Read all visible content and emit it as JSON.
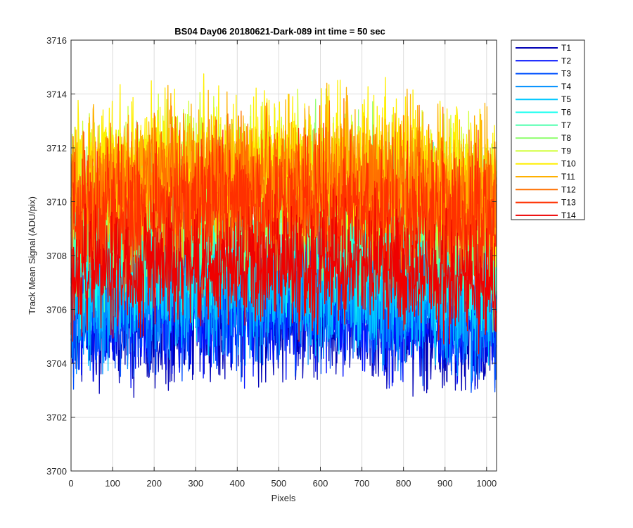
{
  "chart_data": {
    "type": "line",
    "title": "BS04 Day06 20180621-Dark-089 int time = 50 sec",
    "xlabel": "Pixels",
    "ylabel": "Track Mean Signal (ADU/pix)",
    "xlim": [
      0,
      1024
    ],
    "ylim": [
      3700,
      3716
    ],
    "xticks": [
      0,
      100,
      200,
      300,
      400,
      500,
      600,
      700,
      800,
      900,
      1000
    ],
    "yticks": [
      3700,
      3702,
      3704,
      3706,
      3708,
      3710,
      3712,
      3714,
      3716
    ],
    "grid": true,
    "legend_position": "outside-top-right",
    "n_points_per_series": 1024,
    "series": [
      {
        "name": "T1",
        "color": "#0000b5",
        "mean": 3705.6,
        "spread": 1.1
      },
      {
        "name": "T2",
        "color": "#0010ff",
        "mean": 3706.0,
        "spread": 1.1
      },
      {
        "name": "T3",
        "color": "#0050ff",
        "mean": 3706.4,
        "spread": 1.2
      },
      {
        "name": "T4",
        "color": "#0090ff",
        "mean": 3706.8,
        "spread": 1.2
      },
      {
        "name": "T5",
        "color": "#00c8ff",
        "mean": 3707.2,
        "spread": 1.2
      },
      {
        "name": "T6",
        "color": "#10ffef",
        "mean": 3708.6,
        "spread": 1.3
      },
      {
        "name": "T7",
        "color": "#50ffaf",
        "mean": 3709.4,
        "spread": 1.3
      },
      {
        "name": "T8",
        "color": "#90ff6f",
        "mean": 3710.2,
        "spread": 1.3
      },
      {
        "name": "T9",
        "color": "#cfff30",
        "mean": 3711.0,
        "spread": 1.3
      },
      {
        "name": "T10",
        "color": "#ffef00",
        "mean": 3711.4,
        "spread": 1.3
      },
      {
        "name": "T11",
        "color": "#ffb000",
        "mean": 3711.0,
        "spread": 1.3
      },
      {
        "name": "T12",
        "color": "#ff7000",
        "mean": 3710.6,
        "spread": 1.3
      },
      {
        "name": "T13",
        "color": "#ff3000",
        "mean": 3709.8,
        "spread": 1.3
      },
      {
        "name": "T14",
        "color": "#ef0000",
        "mean": 3707.6,
        "spread": 1.1
      }
    ]
  }
}
